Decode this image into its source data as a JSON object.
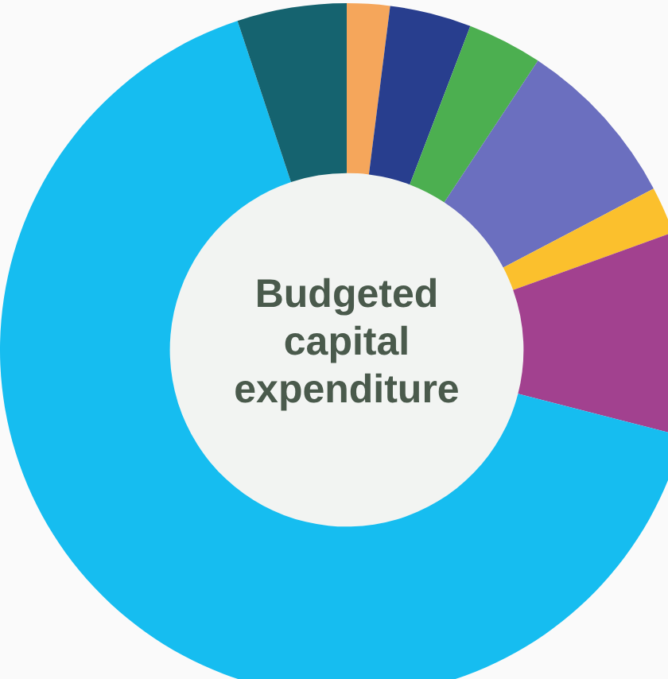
{
  "chart_data": {
    "type": "donut",
    "title": "Budgeted capital expenditure",
    "categories": [
      null,
      null,
      null,
      null,
      null,
      null,
      null,
      null
    ],
    "values": [
      2,
      3.8,
      3.5,
      8,
      2.2,
      9.5,
      65.9,
      5.1
    ],
    "colors": [
      "#f5a65b",
      "#283e8e",
      "#4caf50",
      "#6b6fbf",
      "#fbc02d",
      "#a2418f",
      "#16bdf0",
      "#15636f"
    ],
    "legend": false
  }
}
